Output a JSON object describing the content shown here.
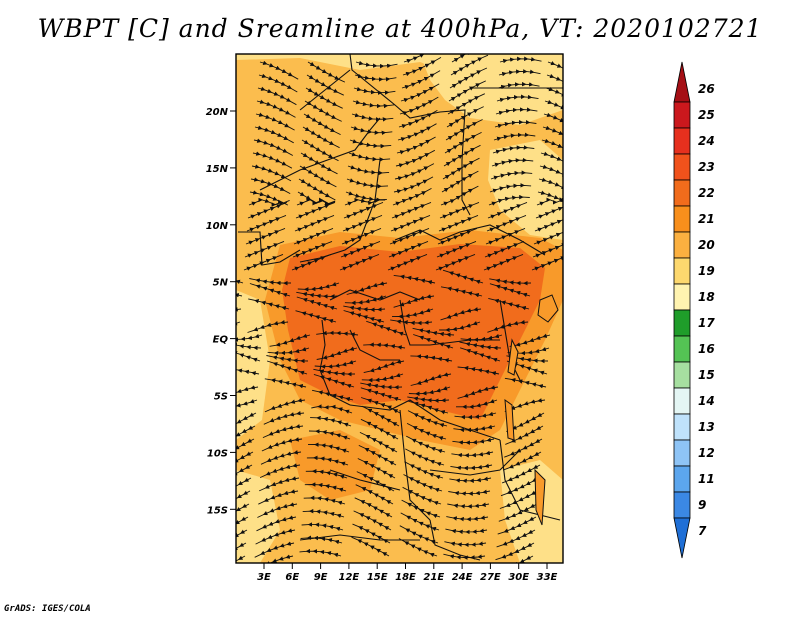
{
  "title": "WBPT [C] and Sreamline at 400hPa, VT: 2020102721",
  "credit": "GrADS: IGES/COLA",
  "map": {
    "lat_labels": [
      "20N",
      "15N",
      "10N",
      "5N",
      "EQ",
      "5S",
      "10S",
      "15S"
    ],
    "lon_labels": [
      "3E",
      "6E",
      "9E",
      "12E",
      "15E",
      "18E",
      "21E",
      "24E",
      "27E",
      "30E",
      "33E"
    ],
    "fill_colors": {
      "light": "#fee088",
      "medium": "#fbbd4e",
      "warm": "#f89a2a",
      "hot": "#f16c1c"
    }
  },
  "colorbar": {
    "levels": [
      "26",
      "25",
      "24",
      "23",
      "22",
      "21",
      "20",
      "19",
      "18",
      "17",
      "16",
      "15",
      "14",
      "13",
      "12",
      "11",
      "9",
      "7"
    ],
    "colors": [
      "#a50f15",
      "#cb181d",
      "#e6301e",
      "#f1521c",
      "#f16c1c",
      "#f88f1c",
      "#fbb040",
      "#fdd86e",
      "#fff3b0",
      "#1f9d2a",
      "#54c354",
      "#a6dfa0",
      "#e4f6f4",
      "#bfe2fb",
      "#8ec4f6",
      "#5ca6ee",
      "#3b88e4",
      "#1f6fd6"
    ]
  }
}
